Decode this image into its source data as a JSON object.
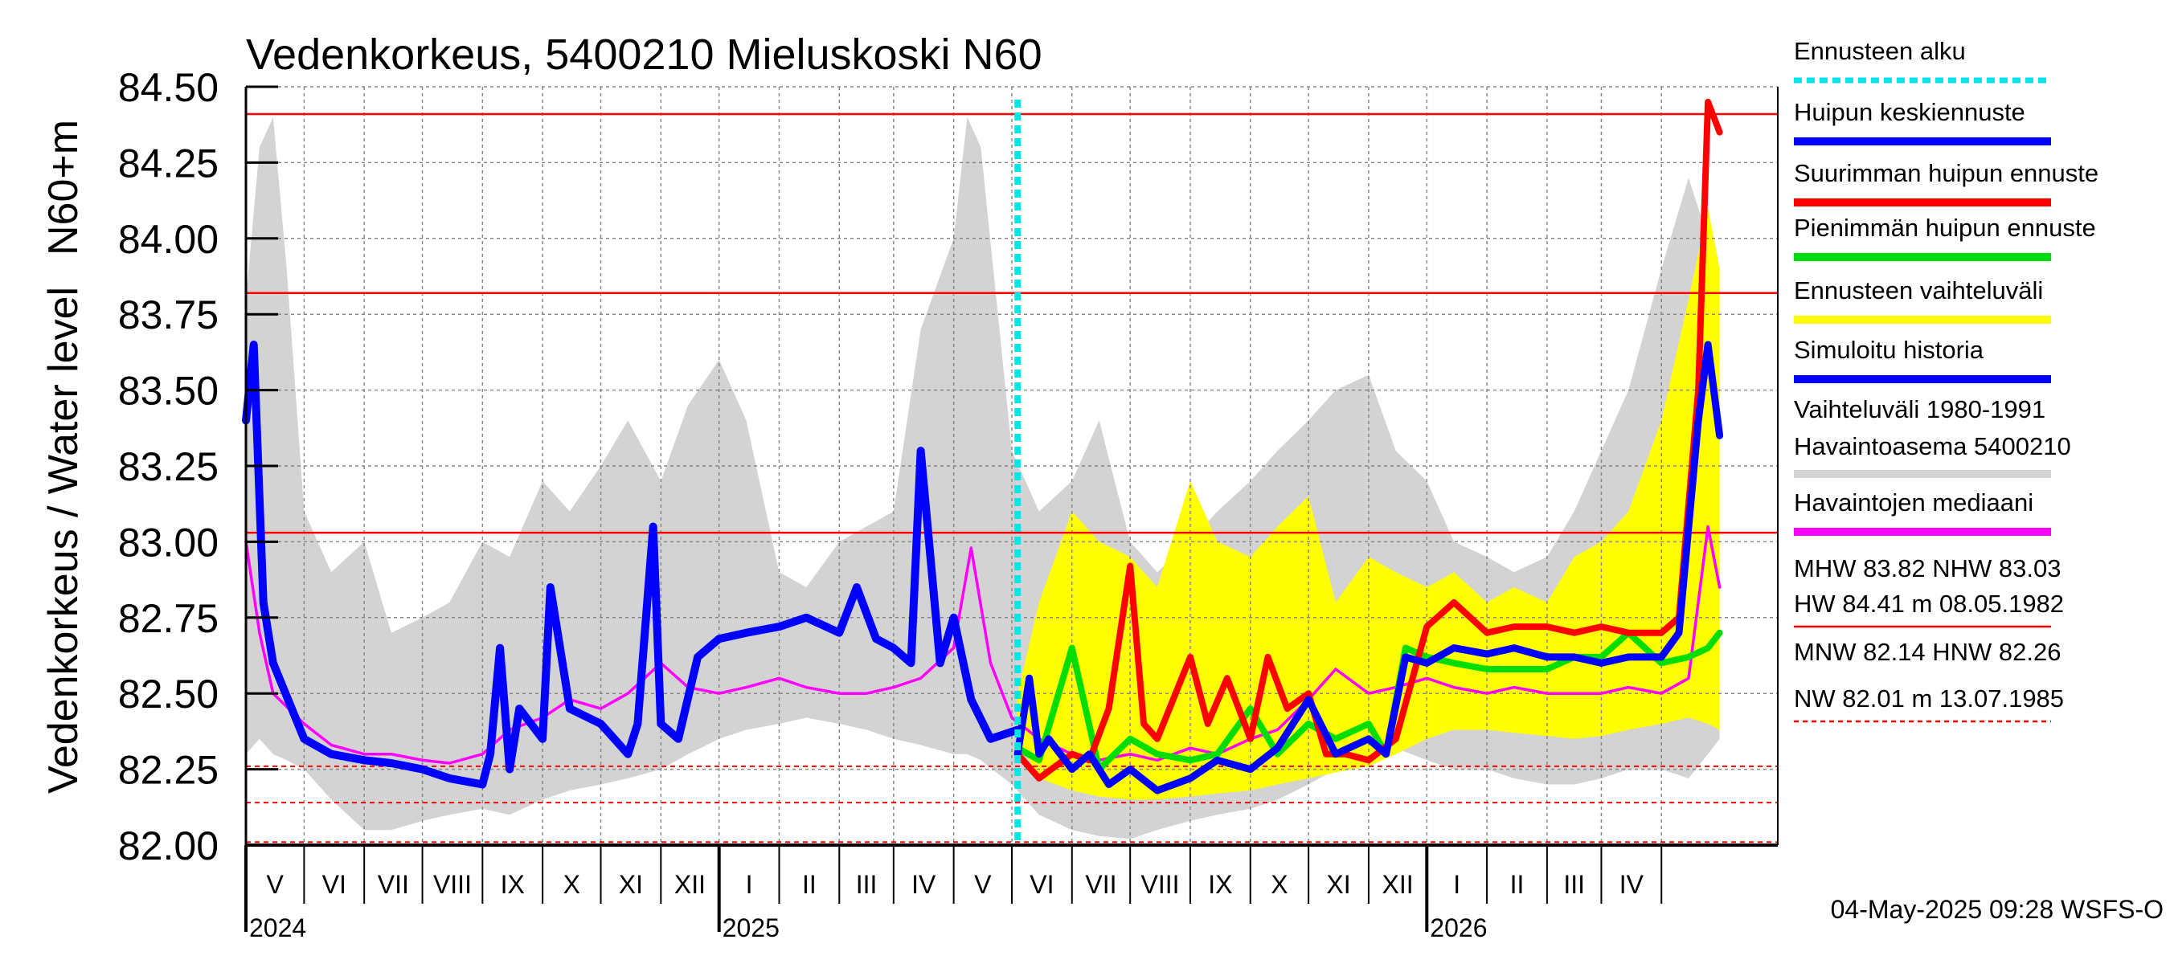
{
  "chart_data": {
    "type": "line",
    "title": "Vedenkorkeus, 5400210 Mieluskoski N60",
    "ylabel_top": "N60+m",
    "ylabel": "Vedenkorkeus / Water level",
    "ylim": [
      82.0,
      84.5
    ],
    "y_ticks": [
      "82.00",
      "82.25",
      "82.50",
      "82.75",
      "83.00",
      "83.25",
      "83.50",
      "83.75",
      "84.00",
      "84.25",
      "84.50"
    ],
    "x_start": "2024-04-01",
    "x_end": "2026-05-31",
    "forecast_start": "2025-05-04",
    "months": [
      {
        "label": "V",
        "start": "2024-04-01"
      },
      {
        "label": "VI",
        "start": "2024-05-01"
      },
      {
        "label": "VII",
        "start": "2024-06-01"
      },
      {
        "label": "VIII",
        "start": "2024-07-01"
      },
      {
        "label": "IX",
        "start": "2024-08-01"
      },
      {
        "label": "X",
        "start": "2024-09-01"
      },
      {
        "label": "XI",
        "start": "2024-10-01"
      },
      {
        "label": "XII",
        "start": "2024-11-01"
      },
      {
        "label": "I",
        "start": "2024-12-01"
      },
      {
        "label": "II",
        "start": "2025-01-01"
      },
      {
        "label": "III",
        "start": "2025-02-01"
      },
      {
        "label": "IV",
        "start": "2025-03-01"
      },
      {
        "label": "V",
        "start": "2025-04-01"
      },
      {
        "label": "VI",
        "start": "2025-05-01"
      },
      {
        "label": "VII",
        "start": "2025-06-01"
      },
      {
        "label": "VIII",
        "start": "2025-07-01"
      },
      {
        "label": "IX",
        "start": "2025-08-01"
      },
      {
        "label": "X",
        "start": "2025-09-01"
      },
      {
        "label": "XI",
        "start": "2025-10-01"
      },
      {
        "label": "XII",
        "start": "2025-11-01"
      },
      {
        "label": "I",
        "start": "2025-12-01"
      },
      {
        "label": "II",
        "start": "2026-01-01"
      },
      {
        "label": "III",
        "start": "2026-02-01"
      },
      {
        "label": "IV",
        "start": "2026-03-01"
      },
      {
        "label": "",
        "start": "2026-04-01"
      }
    ],
    "years": [
      {
        "label": "2024",
        "at": "2024-04-01"
      },
      {
        "label": "2025",
        "at": "2024-12-01"
      },
      {
        "label": "2026",
        "at": "2025-12-01"
      }
    ],
    "reference_lines": [
      {
        "name": "HW",
        "value": 84.41,
        "style": "solid"
      },
      {
        "name": "MHW",
        "value": 83.82,
        "style": "solid"
      },
      {
        "name": "NHW",
        "value": 83.03,
        "style": "solid"
      },
      {
        "name": "HNW",
        "value": 82.26,
        "style": "dashed"
      },
      {
        "name": "MNW",
        "value": 82.14,
        "style": "dashed"
      },
      {
        "name": "NW",
        "value": 82.01,
        "style": "dashed"
      }
    ],
    "series": [
      {
        "name": "Vaihteluväli 1980-1991 Havaintoasema 5400210",
        "type": "band",
        "color": "#d3d3d3",
        "x": [
          "2024-04-01",
          "2024-04-08",
          "2024-04-15",
          "2024-04-22",
          "2024-05-01",
          "2024-05-15",
          "2024-06-01",
          "2024-06-15",
          "2024-07-01",
          "2024-07-15",
          "2024-08-01",
          "2024-08-15",
          "2024-09-01",
          "2024-09-15",
          "2024-10-01",
          "2024-10-15",
          "2024-11-01",
          "2024-11-15",
          "2024-12-01",
          "2024-12-15",
          "2025-01-01",
          "2025-01-15",
          "2025-02-01",
          "2025-02-15",
          "2025-03-01",
          "2025-03-15",
          "2025-04-01",
          "2025-04-08",
          "2025-04-15",
          "2025-05-01",
          "2025-05-15",
          "2025-06-01",
          "2025-06-15",
          "2025-07-01",
          "2025-07-15",
          "2025-08-01",
          "2025-08-15",
          "2025-09-01",
          "2025-09-15",
          "2025-10-01",
          "2025-10-15",
          "2025-11-01",
          "2025-11-15",
          "2025-12-01",
          "2025-12-15",
          "2026-01-01",
          "2026-01-15",
          "2026-02-01",
          "2026-02-15",
          "2026-03-01",
          "2026-03-15",
          "2026-04-01",
          "2026-04-15",
          "2026-04-25",
          "2026-05-01"
        ],
        "lower": [
          82.3,
          82.35,
          82.3,
          82.28,
          82.25,
          82.15,
          82.05,
          82.05,
          82.08,
          82.1,
          82.12,
          82.1,
          82.15,
          82.18,
          82.2,
          82.22,
          82.25,
          82.3,
          82.35,
          82.38,
          82.4,
          82.42,
          82.4,
          82.38,
          82.35,
          82.33,
          82.3,
          82.3,
          82.28,
          82.2,
          82.1,
          82.05,
          82.03,
          82.02,
          82.05,
          82.08,
          82.1,
          82.12,
          82.15,
          82.2,
          82.25,
          82.3,
          82.32,
          82.28,
          82.25,
          82.25,
          82.22,
          82.2,
          82.2,
          82.22,
          82.25,
          82.25,
          82.22,
          82.3,
          82.35
        ],
        "upper": [
          83.8,
          84.3,
          84.4,
          83.9,
          83.1,
          82.9,
          83.0,
          82.7,
          82.75,
          82.8,
          83.0,
          82.95,
          83.2,
          83.1,
          83.25,
          83.4,
          83.2,
          83.45,
          83.6,
          83.4,
          82.9,
          82.85,
          83.0,
          83.05,
          83.1,
          83.7,
          84.0,
          84.4,
          84.3,
          83.3,
          83.1,
          83.2,
          83.4,
          83.0,
          82.9,
          83.0,
          83.1,
          83.2,
          83.3,
          83.4,
          83.5,
          83.55,
          83.3,
          83.2,
          83.0,
          82.95,
          82.9,
          82.95,
          83.1,
          83.3,
          83.5,
          83.9,
          84.2,
          84.0,
          83.8
        ]
      },
      {
        "name": "Ennusteen vaihteluväli",
        "type": "band",
        "color": "#ffff00",
        "x": [
          "2025-05-04",
          "2025-05-15",
          "2025-06-01",
          "2025-06-15",
          "2025-07-01",
          "2025-07-15",
          "2025-08-01",
          "2025-08-15",
          "2025-09-01",
          "2025-09-15",
          "2025-10-01",
          "2025-10-15",
          "2025-11-01",
          "2025-11-15",
          "2025-12-01",
          "2025-12-15",
          "2026-01-01",
          "2026-01-15",
          "2026-02-01",
          "2026-02-15",
          "2026-03-01",
          "2026-03-15",
          "2026-04-01",
          "2026-04-15",
          "2026-04-25",
          "2026-05-01"
        ],
        "lower": [
          82.35,
          82.22,
          82.18,
          82.16,
          82.15,
          82.15,
          82.16,
          82.17,
          82.18,
          82.2,
          82.22,
          82.24,
          82.26,
          82.3,
          82.35,
          82.38,
          82.38,
          82.37,
          82.36,
          82.35,
          82.36,
          82.38,
          82.4,
          82.42,
          82.4,
          82.38
        ],
        "upper": [
          82.5,
          82.8,
          83.1,
          83.0,
          82.95,
          82.85,
          83.2,
          83.0,
          82.95,
          83.05,
          83.15,
          82.8,
          82.95,
          82.9,
          82.85,
          82.9,
          82.8,
          82.85,
          82.8,
          82.95,
          83.0,
          83.1,
          83.4,
          83.8,
          84.1,
          83.9
        ]
      },
      {
        "name": "Havaintojen mediaani",
        "color": "#ff00ff",
        "x": [
          "2024-04-01",
          "2024-04-08",
          "2024-04-15",
          "2024-05-01",
          "2024-05-15",
          "2024-06-01",
          "2024-06-15",
          "2024-07-01",
          "2024-07-15",
          "2024-08-01",
          "2024-08-15",
          "2024-09-01",
          "2024-09-15",
          "2024-10-01",
          "2024-10-15",
          "2024-11-01",
          "2024-11-15",
          "2024-12-01",
          "2024-12-15",
          "2025-01-01",
          "2025-01-15",
          "2025-02-01",
          "2025-02-15",
          "2025-03-01",
          "2025-03-15",
          "2025-04-01",
          "2025-04-10",
          "2025-04-20",
          "2025-05-01",
          "2025-05-15",
          "2025-06-01",
          "2025-06-15",
          "2025-07-01",
          "2025-07-15",
          "2025-08-01",
          "2025-08-15",
          "2025-09-01",
          "2025-09-15",
          "2025-10-01",
          "2025-10-15",
          "2025-11-01",
          "2025-11-15",
          "2025-12-01",
          "2025-12-15",
          "2026-01-01",
          "2026-01-15",
          "2026-02-01",
          "2026-02-15",
          "2026-03-01",
          "2026-03-15",
          "2026-04-01",
          "2026-04-15",
          "2026-04-25",
          "2026-05-01"
        ],
        "y": [
          83.0,
          82.7,
          82.5,
          82.4,
          82.33,
          82.3,
          82.3,
          82.28,
          82.27,
          82.3,
          82.38,
          82.42,
          82.48,
          82.45,
          82.5,
          82.6,
          82.52,
          82.5,
          82.52,
          82.55,
          82.52,
          82.5,
          82.5,
          82.52,
          82.55,
          82.65,
          82.98,
          82.6,
          82.42,
          82.35,
          82.3,
          82.28,
          82.3,
          82.28,
          82.32,
          82.3,
          82.35,
          82.38,
          82.48,
          82.58,
          82.5,
          82.52,
          82.55,
          82.52,
          82.5,
          82.52,
          82.5,
          82.5,
          82.5,
          82.52,
          82.5,
          82.55,
          83.05,
          82.85
        ]
      },
      {
        "name": "Simuloitu historia",
        "color": "#0000ff",
        "x": [
          "2024-04-01",
          "2024-04-05",
          "2024-04-10",
          "2024-04-15",
          "2024-05-01",
          "2024-05-15",
          "2024-06-01",
          "2024-06-15",
          "2024-07-01",
          "2024-07-15",
          "2024-08-01",
          "2024-08-05",
          "2024-08-10",
          "2024-08-15",
          "2024-08-20",
          "2024-09-01",
          "2024-09-05",
          "2024-09-15",
          "2024-10-01",
          "2024-10-08",
          "2024-10-15",
          "2024-10-20",
          "2024-10-28",
          "2024-11-01",
          "2024-11-10",
          "2024-11-20",
          "2024-12-01",
          "2024-12-15",
          "2025-01-01",
          "2025-01-15",
          "2025-02-01",
          "2025-02-10",
          "2025-02-20",
          "2025-03-01",
          "2025-03-10",
          "2025-03-15",
          "2025-03-25",
          "2025-04-01",
          "2025-04-10",
          "2025-04-20",
          "2025-05-04"
        ],
        "y": [
          83.4,
          83.65,
          82.8,
          82.6,
          82.35,
          82.3,
          82.28,
          82.27,
          82.25,
          82.22,
          82.2,
          82.3,
          82.65,
          82.25,
          82.45,
          82.35,
          82.85,
          82.45,
          82.4,
          82.35,
          82.3,
          82.4,
          83.05,
          82.4,
          82.35,
          82.62,
          82.68,
          82.7,
          82.72,
          82.75,
          82.7,
          82.85,
          82.68,
          82.65,
          82.6,
          83.3,
          82.6,
          82.75,
          82.48,
          82.35,
          82.38
        ]
      },
      {
        "name": "Huipun keskiennuste",
        "color": "#0000ff",
        "x": [
          "2025-05-04",
          "2025-05-10",
          "2025-05-15",
          "2025-05-20",
          "2025-06-01",
          "2025-06-10",
          "2025-06-20",
          "2025-07-01",
          "2025-07-15",
          "2025-08-01",
          "2025-08-15",
          "2025-09-01",
          "2025-09-15",
          "2025-10-01",
          "2025-10-15",
          "2025-11-01",
          "2025-11-10",
          "2025-11-20",
          "2025-12-01",
          "2025-12-15",
          "2026-01-01",
          "2026-01-15",
          "2026-02-01",
          "2026-02-15",
          "2026-03-01",
          "2026-03-15",
          "2026-04-01",
          "2026-04-10",
          "2026-04-20",
          "2026-04-25",
          "2026-05-01"
        ],
        "y": [
          82.3,
          82.55,
          82.3,
          82.35,
          82.25,
          82.3,
          82.2,
          82.25,
          82.18,
          82.22,
          82.28,
          82.25,
          82.32,
          82.48,
          82.3,
          82.35,
          82.3,
          82.62,
          82.6,
          82.65,
          82.63,
          82.65,
          82.62,
          82.62,
          82.6,
          82.62,
          82.62,
          82.7,
          83.4,
          83.65,
          83.35
        ]
      },
      {
        "name": "Suurimman huipun ennuste",
        "color": "#ff0000",
        "x": [
          "2025-05-04",
          "2025-05-15",
          "2025-06-01",
          "2025-06-10",
          "2025-06-20",
          "2025-07-01",
          "2025-07-08",
          "2025-07-15",
          "2025-08-01",
          "2025-08-10",
          "2025-08-20",
          "2025-09-01",
          "2025-09-10",
          "2025-09-20",
          "2025-10-01",
          "2025-10-10",
          "2025-10-20",
          "2025-11-01",
          "2025-11-15",
          "2025-12-01",
          "2025-12-15",
          "2026-01-01",
          "2026-01-15",
          "2026-02-01",
          "2026-02-15",
          "2026-03-01",
          "2026-03-15",
          "2026-04-01",
          "2026-04-10",
          "2026-04-20",
          "2026-04-25",
          "2026-05-01"
        ],
        "y": [
          82.3,
          82.22,
          82.3,
          82.28,
          82.45,
          82.92,
          82.4,
          82.35,
          82.62,
          82.4,
          82.55,
          82.35,
          82.62,
          82.45,
          82.5,
          82.3,
          82.3,
          82.28,
          82.35,
          82.72,
          82.8,
          82.7,
          82.72,
          82.72,
          82.7,
          82.72,
          82.7,
          82.7,
          82.75,
          83.5,
          84.45,
          84.35
        ]
      },
      {
        "name": "Pienimmän huipun ennuste",
        "color": "#00dd00",
        "x": [
          "2025-05-04",
          "2025-05-15",
          "2025-06-01",
          "2025-06-15",
          "2025-07-01",
          "2025-07-15",
          "2025-08-01",
          "2025-08-15",
          "2025-09-01",
          "2025-09-15",
          "2025-10-01",
          "2025-10-15",
          "2025-11-01",
          "2025-11-10",
          "2025-11-20",
          "2025-12-01",
          "2025-12-15",
          "2026-01-01",
          "2026-01-15",
          "2026-02-01",
          "2026-02-15",
          "2026-03-01",
          "2026-03-15",
          "2026-04-01",
          "2026-04-15",
          "2026-04-25",
          "2026-05-01"
        ],
        "y": [
          82.32,
          82.28,
          82.65,
          82.25,
          82.35,
          82.3,
          82.28,
          82.3,
          82.45,
          82.3,
          82.4,
          82.35,
          82.4,
          82.3,
          82.65,
          82.62,
          82.6,
          82.58,
          82.58,
          82.58,
          82.62,
          82.62,
          82.7,
          82.6,
          82.62,
          82.65,
          82.7
        ]
      }
    ],
    "legend": {
      "placement": "right",
      "entries": [
        {
          "label": "Ennusteen alku",
          "color": "#00e5e5",
          "style": "dotted"
        },
        {
          "label": "Huipun keskiennuste",
          "color": "#0000ff",
          "style": "solid"
        },
        {
          "label": "Suurimman huipun ennuste",
          "color": "#ff0000",
          "style": "solid"
        },
        {
          "label": "Pienimmän huipun ennuste",
          "color": "#00dd00",
          "style": "solid"
        },
        {
          "label": "Ennusteen vaihteluväli",
          "color": "#ffff00",
          "style": "solid"
        },
        {
          "label": "Simuloitu historia",
          "color": "#0000ff",
          "style": "solid"
        },
        {
          "label": "Vaihteluväli 1980-1991",
          "label2": " Havaintoasema 5400210",
          "color": "#d3d3d3",
          "style": "solid"
        },
        {
          "label": "Havaintojen mediaani",
          "color": "#ff00ff",
          "style": "solid"
        }
      ],
      "stats": {
        "line1": "MHW  83.82 NHW  83.03",
        "line2": "HW  84.41 m 08.05.1982",
        "line3": "MNW  82.14 HNW  82.26",
        "line4": "NW  82.01 m 13.07.1985"
      }
    },
    "timestamp": "04-May-2025 09:28 WSFS-O"
  }
}
